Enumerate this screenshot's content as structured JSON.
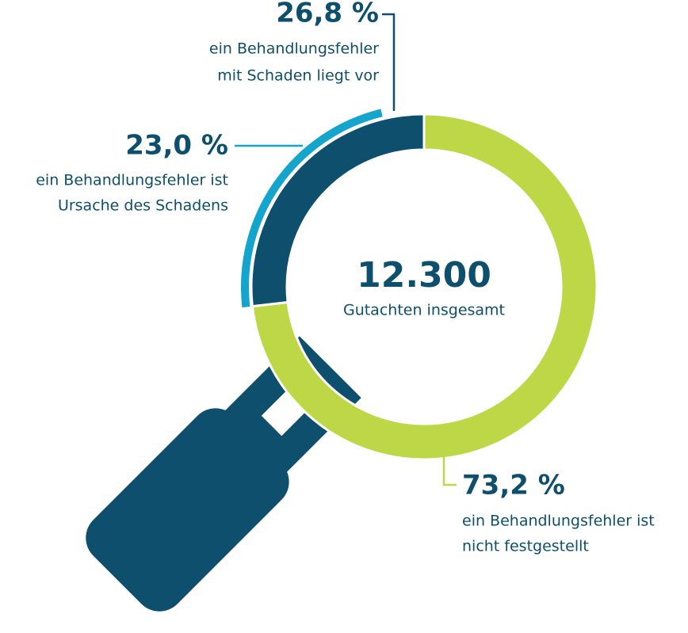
{
  "chart_data": {
    "type": "donut",
    "center_value": "12.300",
    "center_text": "Gutachten insgesamt",
    "categories": [
      [
        "ein Behandlungsfehler",
        "mit Schaden liegt vor"
      ],
      [
        "ein Behandlungsfehler ist",
        "Ursache des Schadens"
      ],
      [
        "ein Behandlungsfehler ist",
        "nicht festgestellt"
      ]
    ],
    "values": [
      26.8,
      23.0,
      73.2
    ],
    "value_labels": [
      "26,8 %",
      "23,0 %",
      "73,2 %"
    ],
    "colors": [
      "#0d4f6c",
      "#14a5cc",
      "#bed746"
    ]
  }
}
